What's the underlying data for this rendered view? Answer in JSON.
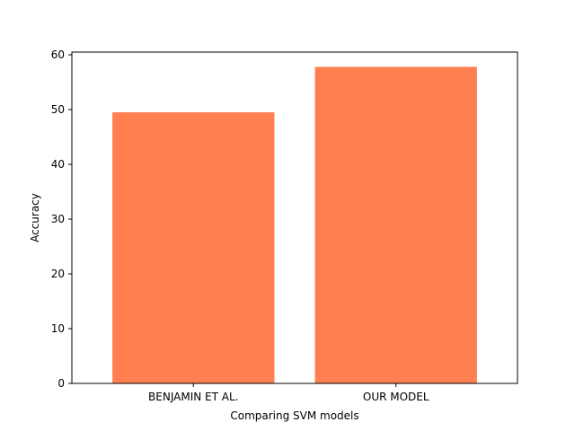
{
  "chart_data": {
    "type": "bar",
    "categories": [
      "BENJAMIN ET AL.",
      "OUR MODEL"
    ],
    "values": [
      49.5,
      57.8
    ],
    "xlabel": "Comparing SVM models",
    "ylabel": "Accuracy",
    "ylim": [
      0,
      60.5
    ],
    "yticks": [
      0,
      10,
      20,
      30,
      40,
      50,
      60
    ],
    "grid": false,
    "bar_color": "#ff7f50"
  }
}
